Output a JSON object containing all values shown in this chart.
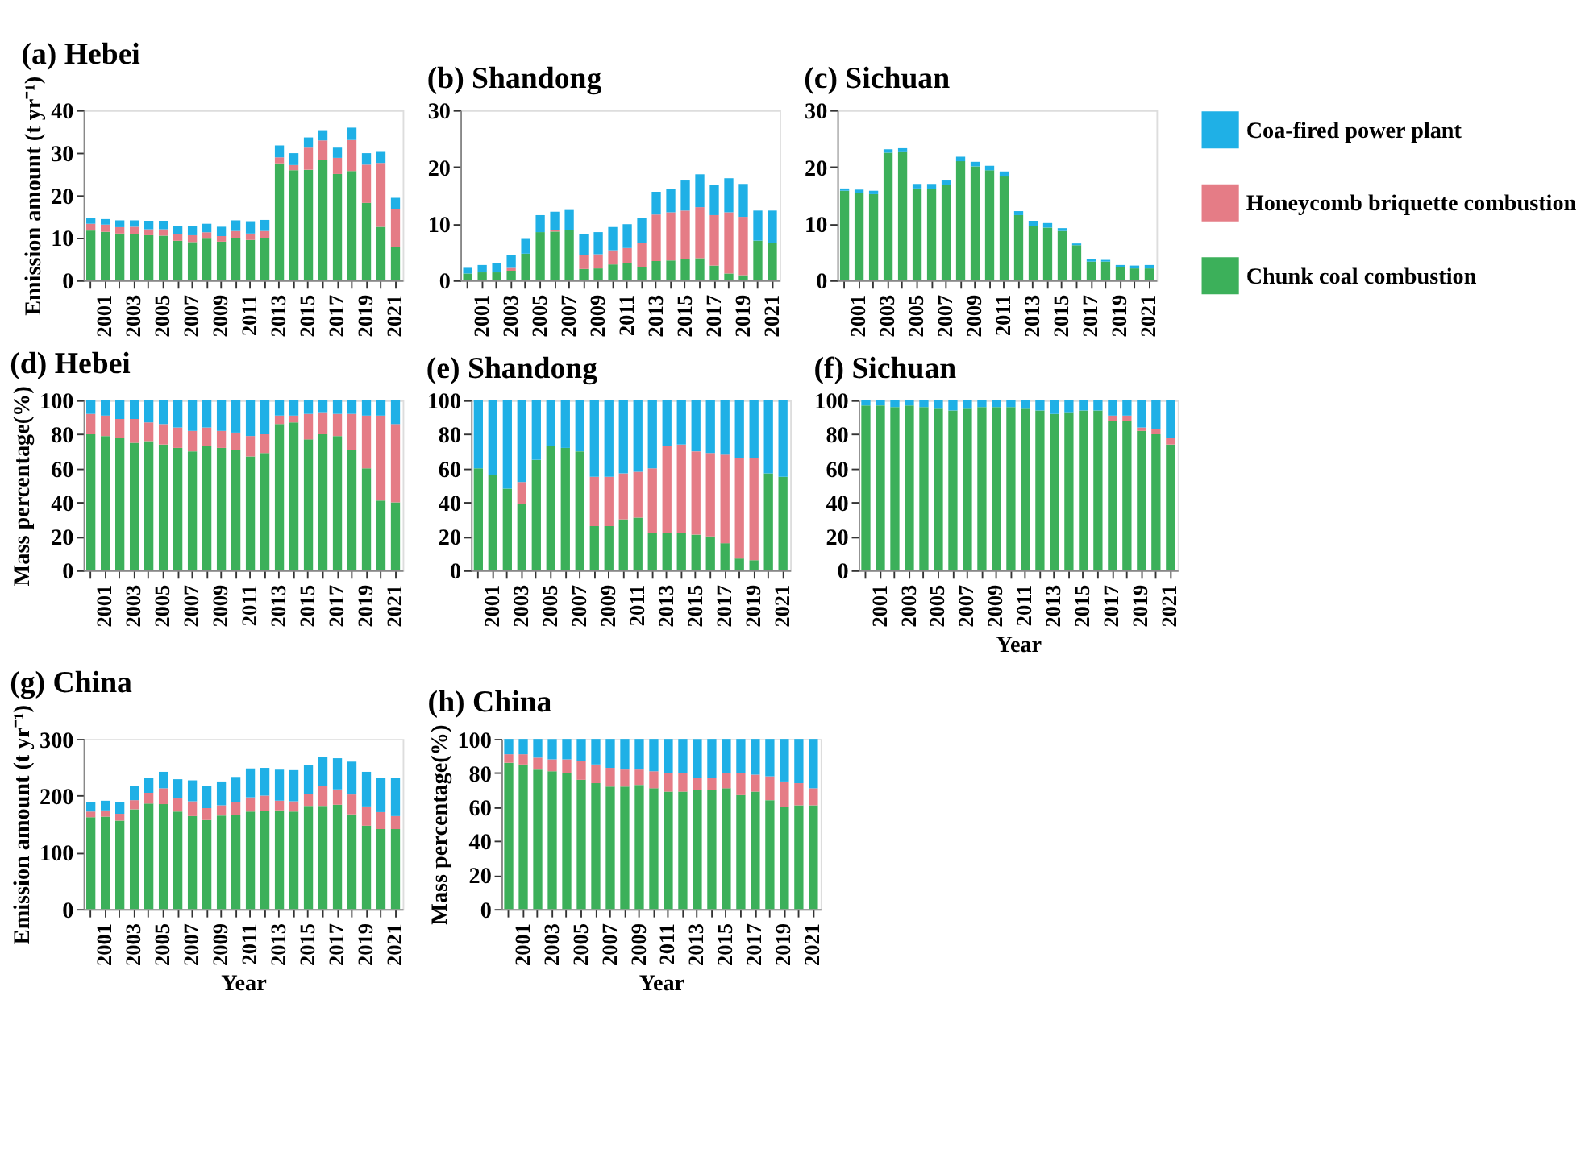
{
  "chart_data": [
    {
      "type": "bar",
      "stacked": true,
      "title": "(a) Hebei",
      "ylabel": "Emission amount (t yr⁻¹)",
      "categories": [
        null,
        "2001",
        null,
        "2003",
        null,
        "2005",
        null,
        "2007",
        null,
        "2009",
        null,
        "2011",
        null,
        "2013",
        null,
        "2015",
        null,
        "2017",
        null,
        "2019",
        null,
        "2021"
      ],
      "ylim": [
        0,
        40
      ],
      "yticks": [
        0,
        10,
        20,
        30,
        40
      ],
      "grid": false,
      "legend": "right",
      "series": [
        {
          "name": "Chunk coal combustion",
          "color": "#3cb05a",
          "values": [
            11.7,
            11.4,
            11.0,
            10.8,
            10.6,
            10.5,
            9.3,
            9.0,
            9.8,
            9.1,
            10.0,
            9.5,
            9.9,
            27.5,
            25.9,
            26.0,
            28.3,
            25.0,
            25.7,
            18.2,
            12.6,
            7.9
          ]
        },
        {
          "name": "Honeycomb briquette combustion",
          "color": "#e57c86",
          "values": [
            1.6,
            1.7,
            1.5,
            1.8,
            1.4,
            1.5,
            1.5,
            1.6,
            1.5,
            1.3,
            1.6,
            1.5,
            1.7,
            1.4,
            1.2,
            5.2,
            4.6,
            3.8,
            7.3,
            9.0,
            15.0,
            8.8
          ]
        },
        {
          "name": "Coa-fired power plant",
          "color": "#1fb0e6",
          "values": [
            1.3,
            1.3,
            1.6,
            1.5,
            2.0,
            2.0,
            2.0,
            2.2,
            2.0,
            2.2,
            2.5,
            2.9,
            2.6,
            2.8,
            2.8,
            2.4,
            2.4,
            2.4,
            2.9,
            2.7,
            2.6,
            2.7
          ]
        }
      ]
    },
    {
      "type": "bar",
      "stacked": true,
      "title": "(b) Shandong",
      "categories": [
        null,
        "2001",
        null,
        "2003",
        null,
        "2005",
        null,
        "2007",
        null,
        "2009",
        null,
        "2011",
        null,
        "2013",
        null,
        "2015",
        null,
        "2017",
        null,
        "2019",
        null,
        "2021"
      ],
      "ylim": [
        0,
        30
      ],
      "yticks": [
        0,
        10,
        20,
        30
      ],
      "grid": false,
      "series": [
        {
          "name": "Chunk coal combustion",
          "color": "#3cb05a",
          "values": [
            1.2,
            1.4,
            1.4,
            1.7,
            4.7,
            8.5,
            8.6,
            8.8,
            2.0,
            2.1,
            2.8,
            3.0,
            2.4,
            3.4,
            3.5,
            3.7,
            3.9,
            2.6,
            1.2,
            0.9,
            7.0,
            6.6
          ]
        },
        {
          "name": "Honeycomb briquette combustion",
          "color": "#e57c86",
          "values": [
            null,
            null,
            null,
            0.5,
            null,
            null,
            0.2,
            null,
            2.5,
            2.5,
            2.5,
            2.7,
            4.2,
            8.2,
            8.5,
            8.6,
            9.0,
            8.9,
            10.8,
            10.3,
            null,
            null
          ]
        },
        {
          "name": "Coa-fired power plant",
          "color": "#1fb0e6",
          "values": [
            1.0,
            1.3,
            1.6,
            2.2,
            2.6,
            3.0,
            3.3,
            3.6,
            3.7,
            3.9,
            4.1,
            4.2,
            4.4,
            4.0,
            4.1,
            5.3,
            5.8,
            5.3,
            6.0,
            5.8,
            5.3,
            5.7
          ]
        }
      ]
    },
    {
      "type": "bar",
      "stacked": true,
      "title": "(c) Sichuan",
      "categories": [
        null,
        "2001",
        null,
        "2003",
        null,
        "2005",
        null,
        "2007",
        null,
        "2009",
        null,
        "2011",
        null,
        "2013",
        null,
        "2015",
        null,
        "2017",
        null,
        "2019",
        null,
        "2021"
      ],
      "ylim": [
        0,
        30
      ],
      "yticks": [
        0,
        10,
        20,
        30
      ],
      "grid": false,
      "series": [
        {
          "name": "Chunk coal combustion",
          "color": "#3cb05a",
          "values": [
            15.8,
            15.4,
            15.2,
            22.5,
            22.6,
            16.2,
            16.1,
            16.8,
            21.0,
            20.1,
            19.4,
            18.3,
            11.5,
            9.6,
            9.3,
            8.7,
            6.2,
            3.3,
            3.3,
            2.3,
            2.1,
            2.1
          ]
        },
        {
          "name": "Honeycomb briquette combustion",
          "color": "#e57c86",
          "values": [
            null,
            null,
            null,
            null,
            null,
            null,
            null,
            null,
            null,
            null,
            null,
            null,
            null,
            null,
            null,
            null,
            null,
            null,
            null,
            null,
            null,
            null
          ]
        },
        {
          "name": "Coa-fired power plant",
          "color": "#1fb0e6",
          "values": [
            0.4,
            0.6,
            0.6,
            0.6,
            0.7,
            0.8,
            0.9,
            0.8,
            0.8,
            0.8,
            0.8,
            0.9,
            0.7,
            0.9,
            0.8,
            0.5,
            0.3,
            0.5,
            0.3,
            0.4,
            0.5,
            0.6
          ]
        }
      ]
    },
    {
      "type": "bar",
      "stacked": true,
      "title": "(d) Hebei",
      "ylabel": "Mass percentage(%)",
      "categories": [
        null,
        "2001",
        null,
        "2003",
        null,
        "2005",
        null,
        "2007",
        null,
        "2009",
        null,
        "2011",
        null,
        "2013",
        null,
        "2015",
        null,
        "2017",
        null,
        "2019",
        null,
        "2021"
      ],
      "ylim": [
        0,
        100
      ],
      "yticks": [
        0,
        20,
        40,
        60,
        80,
        100
      ],
      "grid": false,
      "series": [
        {
          "name": "Chunk coal combustion",
          "color": "#3cb05a",
          "values": [
            80,
            79,
            78,
            75,
            76,
            74,
            72,
            70,
            73,
            72,
            71,
            67,
            69,
            86,
            87,
            77,
            80,
            79,
            71,
            60,
            41,
            40
          ]
        },
        {
          "name": "Honeycomb briquette combustion",
          "color": "#e57c86",
          "values": [
            12,
            12,
            11,
            14,
            11,
            12,
            12,
            12,
            11,
            10,
            10,
            12,
            11,
            5,
            4,
            15,
            13,
            13,
            21,
            31,
            50,
            46
          ]
        },
        {
          "name": "Coa-fired power plant",
          "color": "#1fb0e6",
          "values": [
            8,
            9,
            11,
            11,
            13,
            14,
            16,
            18,
            16,
            18,
            19,
            21,
            20,
            9,
            9,
            8,
            7,
            8,
            8,
            9,
            9,
            14
          ]
        }
      ]
    },
    {
      "type": "bar",
      "stacked": true,
      "title": "(e) Shandong",
      "categories": [
        null,
        "2001",
        null,
        "2003",
        null,
        "2005",
        null,
        "2007",
        null,
        "2009",
        null,
        "2011",
        null,
        "2013",
        null,
        "2015",
        null,
        "2017",
        null,
        "2019",
        null,
        "2021"
      ],
      "ylim": [
        0,
        100
      ],
      "yticks": [
        0,
        20,
        40,
        60,
        80,
        100
      ],
      "grid": false,
      "series": [
        {
          "name": "Chunk coal combustion",
          "color": "#3cb05a",
          "values": [
            60,
            56,
            48,
            39,
            65,
            73,
            72,
            70,
            26,
            26,
            30,
            31,
            22,
            22,
            22,
            21,
            20,
            16,
            7,
            6,
            57,
            55
          ]
        },
        {
          "name": "Honeycomb briquette combustion",
          "color": "#e57c86",
          "values": [
            null,
            null,
            null,
            13,
            null,
            null,
            null,
            null,
            29,
            29,
            27,
            27,
            38,
            51,
            52,
            49,
            49,
            52,
            59,
            60,
            null,
            null
          ]
        },
        {
          "name": "Coa-fired power plant",
          "color": "#1fb0e6",
          "values": [
            40,
            44,
            52,
            48,
            35,
            27,
            28,
            30,
            45,
            45,
            43,
            42,
            40,
            27,
            26,
            30,
            31,
            32,
            34,
            34,
            43,
            45
          ]
        }
      ]
    },
    {
      "type": "bar",
      "stacked": true,
      "title": "(f) Sichuan",
      "xlabel": "Year",
      "categories": [
        null,
        "2001",
        null,
        "2003",
        null,
        "2005",
        null,
        "2007",
        null,
        "2009",
        null,
        "2011",
        null,
        "2013",
        null,
        "2015",
        null,
        "2017",
        null,
        "2019",
        null,
        "2021"
      ],
      "ylim": [
        0,
        100
      ],
      "yticks": [
        0,
        20,
        40,
        60,
        80,
        100
      ],
      "grid": false,
      "series": [
        {
          "name": "Chunk coal combustion",
          "color": "#3cb05a",
          "values": [
            97,
            97,
            96,
            97,
            96,
            95,
            94,
            95,
            96,
            96,
            96,
            95,
            94,
            92,
            93,
            94,
            94,
            88,
            88,
            82,
            80,
            74
          ]
        },
        {
          "name": "Honeycomb briquette combustion",
          "color": "#e57c86",
          "values": [
            null,
            null,
            null,
            null,
            null,
            null,
            null,
            null,
            null,
            null,
            null,
            null,
            null,
            null,
            null,
            null,
            null,
            3,
            3,
            2,
            3,
            4
          ]
        },
        {
          "name": "Coa-fired power plant",
          "color": "#1fb0e6",
          "values": [
            3,
            3,
            4,
            3,
            4,
            5,
            6,
            5,
            4,
            4,
            4,
            5,
            6,
            8,
            7,
            6,
            6,
            9,
            9,
            16,
            17,
            22
          ]
        }
      ]
    },
    {
      "type": "bar",
      "stacked": true,
      "title": "(g) China",
      "xlabel": "Year",
      "ylabel": "Emission amount (t yr⁻¹)",
      "categories": [
        null,
        "2001",
        null,
        "2003",
        null,
        "2005",
        null,
        "2007",
        null,
        "2009",
        null,
        "2011",
        null,
        "2013",
        null,
        "2015",
        null,
        "2017",
        null,
        "2019",
        null,
        "2021"
      ],
      "ylim": [
        0,
        300
      ],
      "yticks": [
        0,
        100,
        200,
        300
      ],
      "grid": false,
      "series": [
        {
          "name": "Chunk coal combustion",
          "color": "#3cb05a",
          "values": [
            162,
            163,
            156,
            176,
            186,
            185,
            172,
            164,
            157,
            165,
            166,
            172,
            173,
            174,
            172,
            182,
            182,
            184,
            167,
            147,
            141,
            141
          ]
        },
        {
          "name": "Honeycomb briquette combustion",
          "color": "#e57c86",
          "values": [
            10,
            11,
            12,
            16,
            19,
            28,
            23,
            26,
            21,
            18,
            22,
            25,
            27,
            17,
            18,
            21,
            35,
            27,
            35,
            34,
            30,
            23
          ]
        },
        {
          "name": "Coa-fired power plant",
          "color": "#1fb0e6",
          "values": [
            16,
            17,
            20,
            25,
            26,
            29,
            34,
            37,
            39,
            42,
            45,
            51,
            49,
            55,
            55,
            51,
            51,
            55,
            58,
            61,
            61,
            67
          ]
        }
      ]
    },
    {
      "type": "bar",
      "stacked": true,
      "title": "(h) China",
      "xlabel": "Year",
      "ylabel": "Mass percentage(%)",
      "categories": [
        null,
        "2001",
        null,
        "2003",
        null,
        "2005",
        null,
        "2007",
        null,
        "2009",
        null,
        "2011",
        null,
        "2013",
        null,
        "2015",
        null,
        "2017",
        null,
        "2019",
        null,
        "2021"
      ],
      "ylim": [
        0,
        100
      ],
      "yticks": [
        0,
        20,
        40,
        60,
        80,
        100
      ],
      "grid": false,
      "series": [
        {
          "name": "Chunk coal combustion",
          "color": "#3cb05a",
          "values": [
            86,
            85,
            82,
            81,
            80,
            76,
            74,
            72,
            72,
            73,
            71,
            69,
            69,
            70,
            70,
            71,
            67,
            69,
            64,
            60,
            61,
            61
          ]
        },
        {
          "name": "Honeycomb briquette combustion",
          "color": "#e57c86",
          "values": [
            5,
            6,
            7,
            7,
            8,
            11,
            11,
            11,
            10,
            9,
            10,
            11,
            11,
            7,
            7,
            9,
            13,
            10,
            14,
            15,
            13,
            10
          ]
        },
        {
          "name": "Coa-fired power plant",
          "color": "#1fb0e6",
          "values": [
            9,
            9,
            11,
            12,
            12,
            13,
            15,
            17,
            18,
            18,
            19,
            20,
            20,
            23,
            23,
            20,
            20,
            21,
            22,
            25,
            26,
            29
          ]
        }
      ]
    }
  ]
}
